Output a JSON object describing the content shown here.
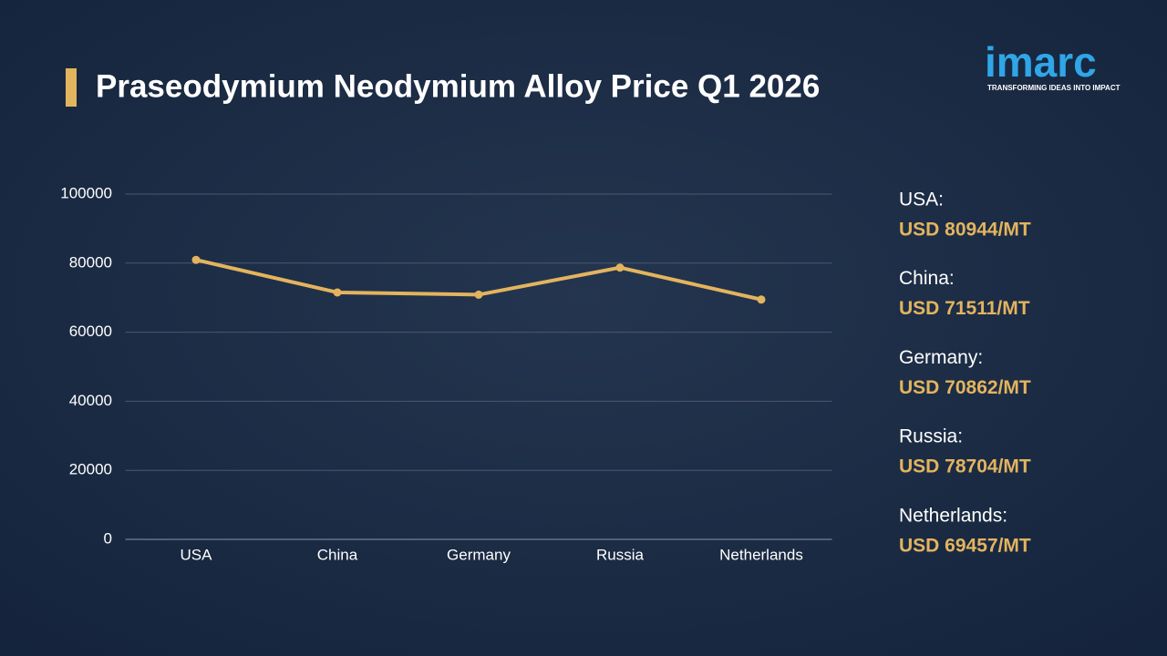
{
  "chart_data": {
    "type": "line",
    "title": "Praseodymium Neodymium Alloy Price Q1 2026",
    "categories": [
      "USA",
      "China",
      "Germany",
      "Russia",
      "Netherlands"
    ],
    "values": [
      80944,
      71511,
      70862,
      78704,
      69457
    ],
    "value_labels": [
      "USD 80944/MT",
      "USD 71511/MT",
      "USD 70862/MT",
      "USD 78704/MT",
      "USD 69457/MT"
    ],
    "panel_labels": [
      "USA:",
      "China:",
      "Germany:",
      "Russia:",
      "Netherlands:"
    ],
    "color": "#e3b45e",
    "ylim": [
      0,
      100000
    ],
    "yticks": [
      0,
      20000,
      40000,
      60000,
      80000,
      100000
    ],
    "grid": true
  },
  "logo": {
    "name": "imarc",
    "tagline": "TRANSFORMING IDEAS INTO IMPACT"
  }
}
